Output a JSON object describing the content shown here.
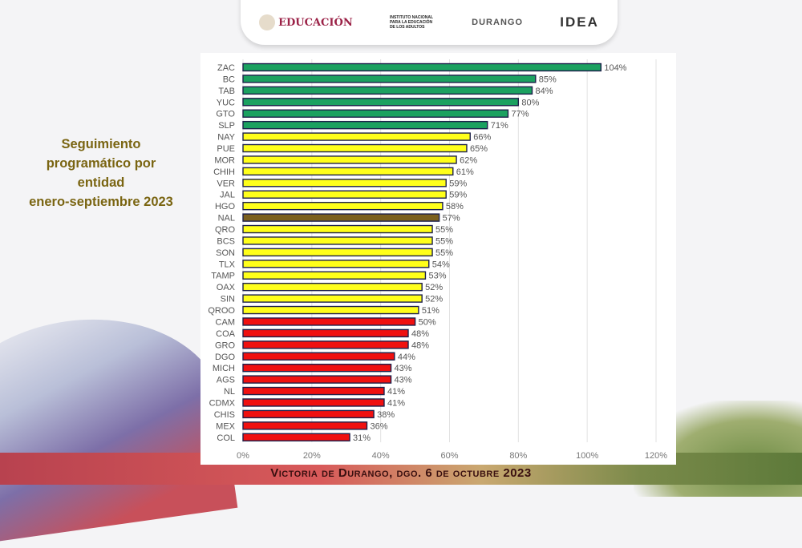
{
  "header": {
    "logos": [
      "EDUCACIÓN",
      "INSTITUTO NACIONAL PARA LA EDUCACIÓN DE LOS ADULTOS",
      "DURANGO",
      "IDEA"
    ]
  },
  "side_title": [
    "Seguimiento",
    "programático por",
    "entidad",
    "enero-septiembre 2023"
  ],
  "footer": "Victoria de Durango, dgo. 6 de octubre 2023",
  "colors": {
    "green": "#1ba160",
    "yellow": "#ffff1a",
    "brown": "#7b5f1e",
    "red": "#f01010",
    "border": "#1c1f4a"
  },
  "chart_data": {
    "type": "bar",
    "orientation": "horizontal",
    "title": "Seguimiento programático por entidad enero-septiembre 2023",
    "xlim": [
      0,
      120
    ],
    "xticks": [
      "0%",
      "20%",
      "40%",
      "60%",
      "80%",
      "100%",
      "120%"
    ],
    "xtick_values": [
      0,
      20,
      40,
      60,
      80,
      100,
      120
    ],
    "grid": true,
    "categories": [
      "ZAC",
      "BC",
      "TAB",
      "YUC",
      "GTO",
      "SLP",
      "NAY",
      "PUE",
      "MOR",
      "CHIH",
      "VER",
      "JAL",
      "HGO",
      "NAL",
      "QRO",
      "BCS",
      "SON",
      "TLX",
      "TAMP",
      "OAX",
      "SIN",
      "QROO",
      "CAM",
      "COA",
      "GRO",
      "DGO",
      "MICH",
      "AGS",
      "NL",
      "CDMX",
      "CHIS",
      "MEX",
      "COL"
    ],
    "values": [
      104,
      85,
      84,
      80,
      77,
      71,
      66,
      65,
      62,
      61,
      59,
      59,
      58,
      57,
      55,
      55,
      55,
      54,
      53,
      52,
      52,
      51,
      50,
      48,
      48,
      44,
      43,
      43,
      41,
      41,
      38,
      36,
      31
    ],
    "bar_colors": [
      "green",
      "green",
      "green",
      "green",
      "green",
      "green",
      "yellow",
      "yellow",
      "yellow",
      "yellow",
      "yellow",
      "yellow",
      "yellow",
      "brown",
      "yellow",
      "yellow",
      "yellow",
      "yellow",
      "yellow",
      "yellow",
      "yellow",
      "yellow",
      "red",
      "red",
      "red",
      "red",
      "red",
      "red",
      "red",
      "red",
      "red",
      "red",
      "red"
    ]
  }
}
